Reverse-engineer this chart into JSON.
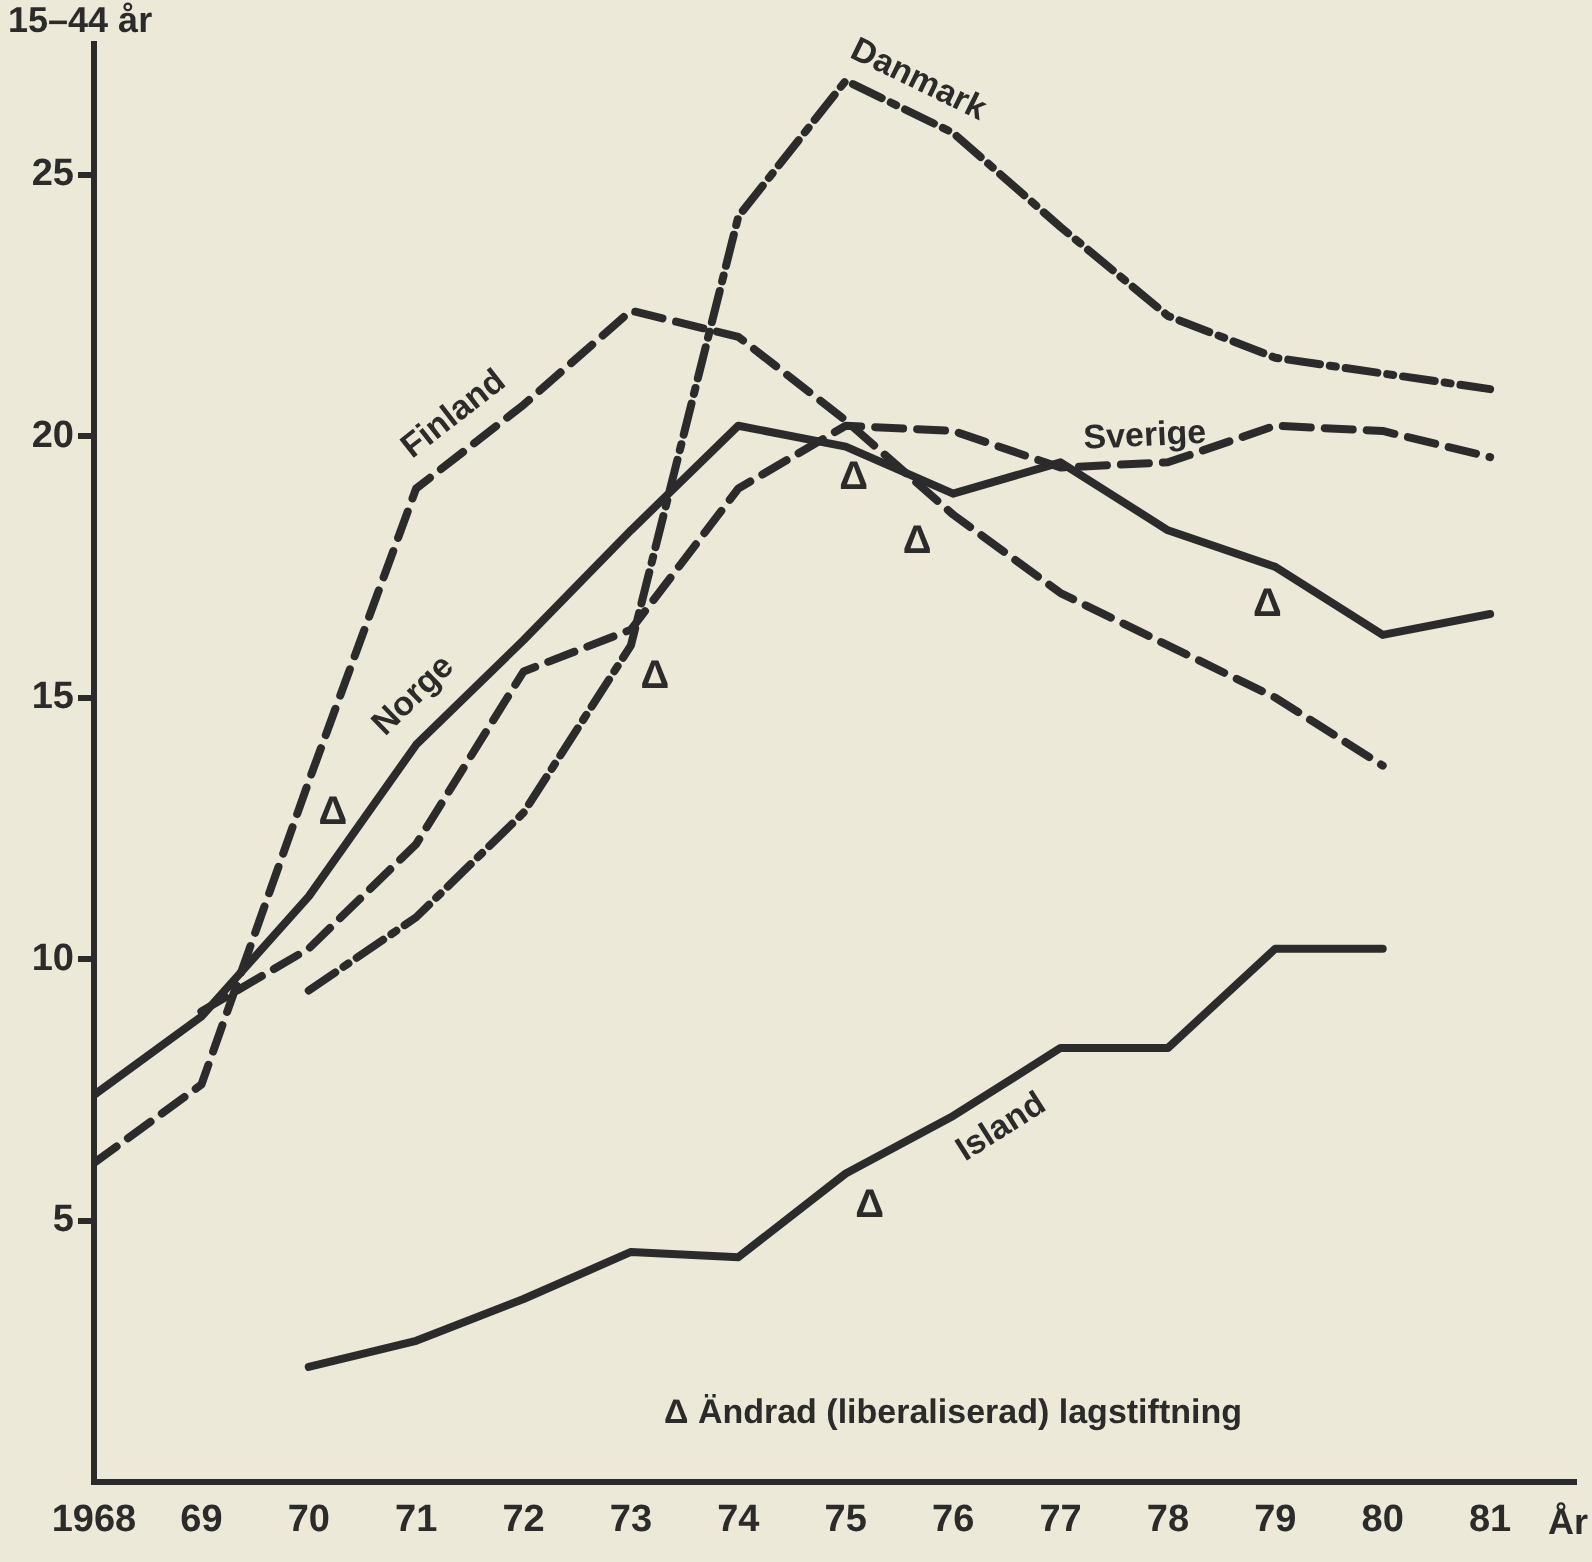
{
  "chart_data": {
    "type": "line",
    "ylabel": "15–44 år",
    "xlabel": "År",
    "x": [
      1968,
      1969,
      1970,
      1971,
      1972,
      1973,
      1974,
      1975,
      1976,
      1977,
      1978,
      1979,
      1980,
      1981
    ],
    "series": [
      {
        "name": "Norge",
        "color": "#2b2b2b",
        "line_style": "solid",
        "values": [
          7.4,
          8.9,
          11.2,
          14.1,
          16.1,
          18.2,
          20.2,
          19.8,
          18.9,
          19.5,
          18.2,
          17.5,
          16.2,
          16.6
        ]
      },
      {
        "name": "Finland",
        "color": "#2b2b2b",
        "line_style": "dashed",
        "values": [
          6.1,
          7.6,
          13.4,
          19.0,
          20.6,
          22.4,
          21.9,
          20.3,
          18.5,
          17.0,
          16.0,
          15.0,
          13.7,
          null
        ]
      },
      {
        "name": "Sverige",
        "color": "#2b2b2b",
        "line_style": "dashed",
        "values": [
          null,
          9.0,
          10.2,
          12.2,
          15.5,
          16.3,
          19.0,
          20.2,
          20.1,
          19.4,
          19.5,
          20.2,
          20.1,
          19.6
        ]
      },
      {
        "name": "Danmark",
        "color": "#2b2b2b",
        "line_style": "dotted",
        "values": [
          null,
          null,
          9.4,
          10.8,
          12.8,
          16.0,
          24.2,
          26.8,
          25.8,
          24.0,
          22.3,
          21.5,
          21.2,
          20.9
        ]
      },
      {
        "name": "Island",
        "color": "#2b2b2b",
        "line_style": "solid",
        "values": [
          null,
          null,
          2.2,
          2.7,
          3.5,
          4.4,
          4.3,
          5.9,
          7.0,
          8.3,
          8.3,
          10.2,
          10.2,
          null
        ]
      }
    ],
    "xlim": [
      1968,
      1981.8
    ],
    "xticks": [
      {
        "value": 1968,
        "label": "1968"
      },
      {
        "value": 1969,
        "label": "69"
      },
      {
        "value": 1970,
        "label": "70"
      },
      {
        "value": 1971,
        "label": "71"
      },
      {
        "value": 1972,
        "label": "72"
      },
      {
        "value": 1973,
        "label": "73"
      },
      {
        "value": 1974,
        "label": "74"
      },
      {
        "value": 1975,
        "label": "75"
      },
      {
        "value": 1976,
        "label": "76"
      },
      {
        "value": 1977,
        "label": "77"
      },
      {
        "value": 1978,
        "label": "78"
      },
      {
        "value": 1979,
        "label": "79"
      },
      {
        "value": 1980,
        "label": "80"
      },
      {
        "value": 1981,
        "label": "81"
      }
    ],
    "ylim": [
      0,
      27.5
    ],
    "yticks": [
      5,
      10,
      15,
      20,
      25
    ],
    "grid": false,
    "legend": false,
    "marker": "none",
    "annotations": [
      {
        "text": "Δ",
        "x": 1970,
        "y": 13.4
      },
      {
        "text": "Δ",
        "x": 1973,
        "y": 16.0
      },
      {
        "text": "Δ",
        "x": 1975,
        "y": 20.2
      },
      {
        "text": "Δ",
        "x": 1976,
        "y": 18.9
      },
      {
        "text": "Δ",
        "x": 1979,
        "y": 17.5
      },
      {
        "text": "Δ",
        "x": 1975,
        "y": 5.9
      },
      "Δ Ändrad (liberaliserad) lagstiftning"
    ]
  }
}
